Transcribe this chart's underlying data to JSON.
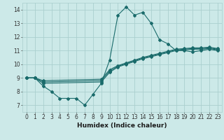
{
  "title": "",
  "xlabel": "Humidex (Indice chaleur)",
  "xlim": [
    -0.5,
    23.5
  ],
  "ylim": [
    6.5,
    14.5
  ],
  "yticks": [
    7,
    8,
    9,
    10,
    11,
    12,
    13,
    14
  ],
  "xticks": [
    0,
    1,
    2,
    3,
    4,
    5,
    6,
    7,
    8,
    9,
    10,
    11,
    12,
    13,
    14,
    15,
    16,
    17,
    18,
    19,
    20,
    21,
    22,
    23
  ],
  "bg_color": "#cce9e8",
  "line_color": "#1a6b6b",
  "grid_color": "#aacfce",
  "lines": [
    {
      "x": [
        0,
        1,
        2,
        3,
        4,
        5,
        6,
        7,
        8,
        9,
        10,
        11,
        12,
        13,
        14,
        15,
        16,
        17,
        18,
        19,
        20,
        21,
        22,
        23
      ],
      "y": [
        9.0,
        9.0,
        8.4,
        8.0,
        7.5,
        7.5,
        7.5,
        7.0,
        7.8,
        8.6,
        10.3,
        13.6,
        14.2,
        13.6,
        13.8,
        13.0,
        11.8,
        11.5,
        11.0,
        11.0,
        10.9,
        11.0,
        11.1,
        11.0
      ]
    },
    {
      "x": [
        0,
        1,
        2,
        9,
        10,
        11,
        12,
        13,
        14,
        15,
        16,
        17,
        18,
        19,
        20,
        21,
        22,
        23
      ],
      "y": [
        9.0,
        9.0,
        8.6,
        8.7,
        9.4,
        9.8,
        10.0,
        10.2,
        10.4,
        10.55,
        10.7,
        10.85,
        11.0,
        11.05,
        11.1,
        11.1,
        11.15,
        11.05
      ]
    },
    {
      "x": [
        0,
        1,
        2,
        9,
        10,
        11,
        12,
        13,
        14,
        15,
        16,
        17,
        18,
        19,
        20,
        21,
        22,
        23
      ],
      "y": [
        9.0,
        9.0,
        8.7,
        8.8,
        9.5,
        9.85,
        10.05,
        10.25,
        10.45,
        10.6,
        10.75,
        10.9,
        11.05,
        11.1,
        11.15,
        11.15,
        11.2,
        11.1
      ]
    },
    {
      "x": [
        0,
        1,
        2,
        9,
        10,
        11,
        12,
        13,
        14,
        15,
        16,
        17,
        18,
        19,
        20,
        21,
        22,
        23
      ],
      "y": [
        9.0,
        9.0,
        8.8,
        8.9,
        9.6,
        9.9,
        10.1,
        10.3,
        10.5,
        10.65,
        10.8,
        10.95,
        11.1,
        11.15,
        11.2,
        11.2,
        11.25,
        11.15
      ]
    }
  ]
}
